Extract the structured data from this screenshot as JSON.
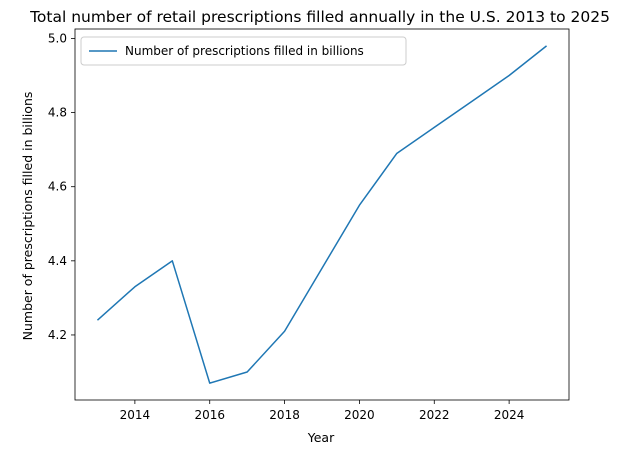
{
  "chart_data": {
    "type": "line",
    "title": "Total number of retail prescriptions filled annually in the U.S. 2013 to 2025",
    "xlabel": "Year",
    "ylabel": "Number of prescriptions filled in billions",
    "x": [
      2013,
      2014,
      2015,
      2016,
      2017,
      2018,
      2019,
      2020,
      2021,
      2022,
      2023,
      2024,
      2025
    ],
    "series": [
      {
        "name": "Number of prescriptions filled in billions",
        "color": "#1f77b4",
        "values": [
          4.24,
          4.33,
          4.4,
          4.07,
          4.1,
          4.21,
          4.38,
          4.55,
          4.69,
          4.76,
          4.83,
          4.9,
          4.98
        ]
      }
    ],
    "xticks": [
      "2014",
      "2016",
      "2018",
      "2020",
      "2022",
      "2024"
    ],
    "yticks": [
      "4.2",
      "4.4",
      "4.6",
      "4.8",
      "5.0"
    ],
    "xlim": [
      2012.4,
      2025.6
    ],
    "ylim": [
      4.0245,
      5.0255
    ],
    "grid": false,
    "legend_position": "upper-left"
  }
}
